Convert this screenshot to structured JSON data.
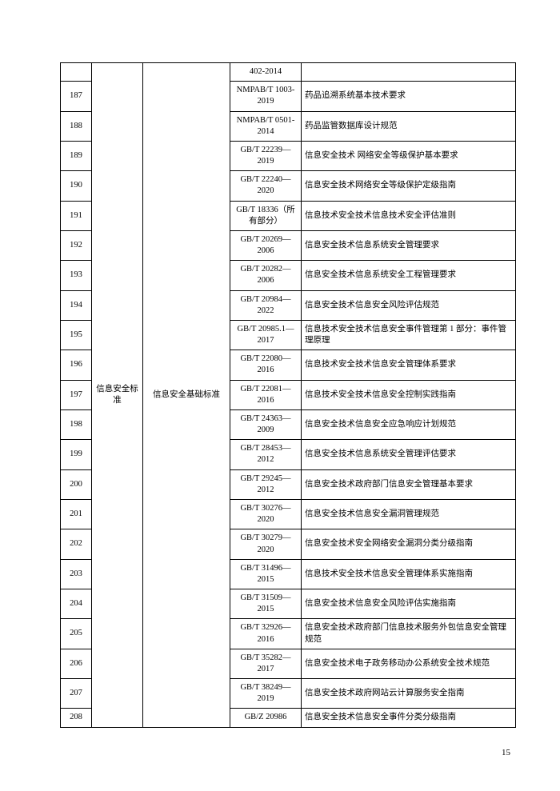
{
  "page_number": "15",
  "category_label": "信息安全标准",
  "sub_label": "信息安全基础标准",
  "rows": [
    {
      "seq": "",
      "code": "402-2014",
      "desc": ""
    },
    {
      "seq": "187",
      "code": "NMPAB/T 1003-2019",
      "desc": "药品追溯系统基本技术要求"
    },
    {
      "seq": "188",
      "code": "NMPAB/T 0501-2014",
      "desc": "药品监管数据库设计规范"
    },
    {
      "seq": "189",
      "code": "GB/T 22239—2019",
      "desc": "信息安全技术 网络安全等级保护基本要求"
    },
    {
      "seq": "190",
      "code": "GB/T 22240—2020",
      "desc": "信息安全技术网络安全等级保护定级指南"
    },
    {
      "seq": "191",
      "code": "GB/T 18336（所有部分）",
      "desc": "信息技术安全技术信息技术安全评估准则"
    },
    {
      "seq": "192",
      "code": "GB/T 20269—2006",
      "desc": "信息安全技术信息系统安全管理要求"
    },
    {
      "seq": "193",
      "code": "GB/T 20282—2006",
      "desc": "信息安全技术信息系统安全工程管理要求"
    },
    {
      "seq": "194",
      "code": "GB/T 20984—2022",
      "desc": "信息安全技术信息安全风险评估规范"
    },
    {
      "seq": "195",
      "code": "GB/T 20985.1—2017",
      "desc": "信息技术安全技术信息安全事件管理第 1 部分：事件管理原理"
    },
    {
      "seq": "196",
      "code": "GB/T 22080—2016",
      "desc": "信息技术安全技术信息安全管理体系要求"
    },
    {
      "seq": "197",
      "code": "GB/T 22081—2016",
      "desc": "信息技术安全技术信息安全控制实践指南"
    },
    {
      "seq": "198",
      "code": "GB/T 24363—2009",
      "desc": "信息安全技术信息安全应急响应计划规范"
    },
    {
      "seq": "199",
      "code": "GB/T 28453—2012",
      "desc": "信息安全技术信息系统安全管理评估要求"
    },
    {
      "seq": "200",
      "code": "GB/T 29245—2012",
      "desc": "信息安全技术政府部门信息安全管理基本要求"
    },
    {
      "seq": "201",
      "code": "GB/T 30276—2020",
      "desc": "信息安全技术信息安全漏洞管理规范"
    },
    {
      "seq": "202",
      "code": "GB/T 30279—2020",
      "desc": "信息安全技术安全网络安全漏洞分类分级指南"
    },
    {
      "seq": "203",
      "code": "GB/T 31496—2015",
      "desc": "信息技术安全技术信息安全管理体系实施指南"
    },
    {
      "seq": "204",
      "code": "GB/T 31509—2015",
      "desc": "信息安全技术信息安全风险评估实施指南"
    },
    {
      "seq": "205",
      "code": "GB/T 32926—2016",
      "desc": "信息安全技术政府部门信息技术服务外包信息安全管理规范"
    },
    {
      "seq": "206",
      "code": "GB/T 35282—2017",
      "desc": "信息安全技术电子政务移动办公系统安全技术规范"
    },
    {
      "seq": "207",
      "code": "GB/T 38249—2019",
      "desc": "信息安全技术政府网站云计算服务安全指南"
    },
    {
      "seq": "208",
      "code": "GB/Z 20986",
      "desc": "信息安全技术信息安全事件分类分级指南"
    }
  ]
}
